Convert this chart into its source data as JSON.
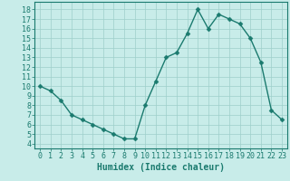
{
  "x": [
    0,
    1,
    2,
    3,
    4,
    5,
    6,
    7,
    8,
    9,
    10,
    11,
    12,
    13,
    14,
    15,
    16,
    17,
    18,
    19,
    20,
    21,
    22,
    23
  ],
  "y": [
    10.0,
    9.5,
    8.5,
    7.0,
    6.5,
    6.0,
    5.5,
    5.0,
    4.5,
    4.5,
    8.0,
    10.5,
    13.0,
    13.5,
    15.5,
    18.0,
    16.0,
    17.5,
    17.0,
    16.5,
    15.0,
    12.5,
    7.5,
    6.5
  ],
  "xlabel": "Humidex (Indice chaleur)",
  "line_color": "#1a7a6e",
  "marker_color": "#1a7a6e",
  "bg_color": "#c8ece9",
  "grid_color": "#9ecfca",
  "axis_color": "#1a7a6e",
  "tick_color": "#1a7a6e",
  "xlim": [
    -0.5,
    23.5
  ],
  "ylim": [
    3.5,
    18.8
  ],
  "yticks": [
    4,
    5,
    6,
    7,
    8,
    9,
    10,
    11,
    12,
    13,
    14,
    15,
    16,
    17,
    18
  ],
  "xticks": [
    0,
    1,
    2,
    3,
    4,
    5,
    6,
    7,
    8,
    9,
    10,
    11,
    12,
    13,
    14,
    15,
    16,
    17,
    18,
    19,
    20,
    21,
    22,
    23
  ],
  "xlabel_fontsize": 7,
  "tick_fontsize": 6,
  "line_width": 1.0,
  "marker_size": 2.5
}
